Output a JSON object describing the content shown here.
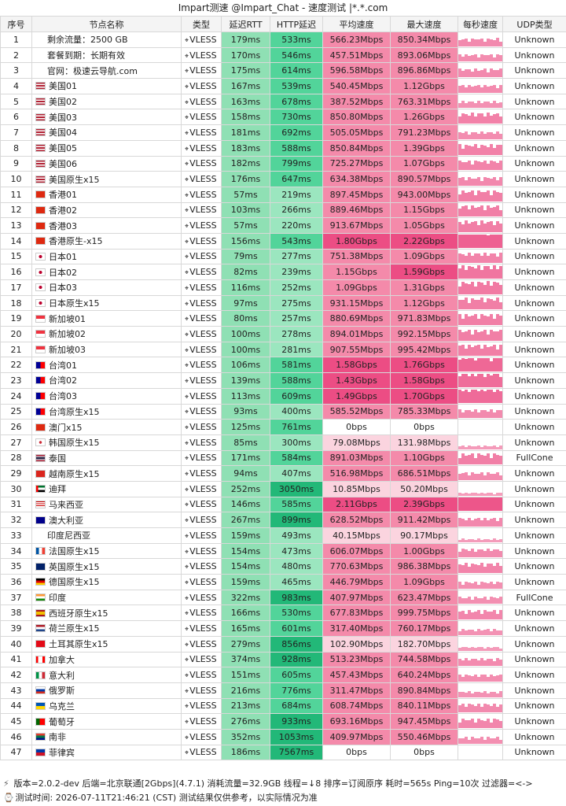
{
  "title": "Impart测速 @Impart_Chat - 速度测试 |*.*.com",
  "headers": [
    "序号",
    "节点名称",
    "类型",
    "延迟RTT",
    "HTTP延迟",
    "平均速度",
    "最大速度",
    "每秒速度",
    "UDP类型"
  ],
  "rows": [
    {
      "idx": "1",
      "flag": "",
      "name": "剩余流量：2500 GB",
      "type": "VLESS",
      "rtt": "179ms",
      "http": "533ms",
      "avg": "566.23Mbps",
      "max": "850.34Mbps",
      "udp": "Unknown"
    },
    {
      "idx": "2",
      "flag": "",
      "name": "套餐到期：长期有效",
      "type": "VLESS",
      "rtt": "170ms",
      "http": "546ms",
      "avg": "457.51Mbps",
      "max": "893.06Mbps",
      "udp": "Unknown"
    },
    {
      "idx": "3",
      "flag": "",
      "name": "官网：极速云导航.com",
      "type": "VLESS",
      "rtt": "175ms",
      "http": "614ms",
      "avg": "596.58Mbps",
      "max": "896.86Mbps",
      "udp": "Unknown"
    },
    {
      "idx": "4",
      "flag": "us",
      "name": "美国01",
      "type": "VLESS",
      "rtt": "167ms",
      "http": "539ms",
      "avg": "540.45Mbps",
      "max": "1.12Gbps",
      "udp": "Unknown"
    },
    {
      "idx": "5",
      "flag": "us",
      "name": "美国02",
      "type": "VLESS",
      "rtt": "163ms",
      "http": "678ms",
      "avg": "387.52Mbps",
      "max": "763.31Mbps",
      "udp": "Unknown"
    },
    {
      "idx": "6",
      "flag": "us",
      "name": "美国03",
      "type": "VLESS",
      "rtt": "158ms",
      "http": "730ms",
      "avg": "850.80Mbps",
      "max": "1.26Gbps",
      "udp": "Unknown"
    },
    {
      "idx": "7",
      "flag": "us",
      "name": "美国04",
      "type": "VLESS",
      "rtt": "181ms",
      "http": "692ms",
      "avg": "505.05Mbps",
      "max": "791.23Mbps",
      "udp": "Unknown"
    },
    {
      "idx": "8",
      "flag": "us",
      "name": "美国05",
      "type": "VLESS",
      "rtt": "183ms",
      "http": "588ms",
      "avg": "850.84Mbps",
      "max": "1.39Gbps",
      "udp": "Unknown"
    },
    {
      "idx": "9",
      "flag": "us",
      "name": "美国06",
      "type": "VLESS",
      "rtt": "182ms",
      "http": "799ms",
      "avg": "725.27Mbps",
      "max": "1.07Gbps",
      "udp": "Unknown"
    },
    {
      "idx": "10",
      "flag": "us",
      "name": "美国原生x15",
      "type": "VLESS",
      "rtt": "176ms",
      "http": "647ms",
      "avg": "634.38Mbps",
      "max": "890.57Mbps",
      "udp": "Unknown"
    },
    {
      "idx": "11",
      "flag": "hk",
      "name": "香港01",
      "type": "VLESS",
      "rtt": "57ms",
      "http": "219ms",
      "avg": "897.45Mbps",
      "max": "943.00Mbps",
      "udp": "Unknown"
    },
    {
      "idx": "12",
      "flag": "hk",
      "name": "香港02",
      "type": "VLESS",
      "rtt": "103ms",
      "http": "266ms",
      "avg": "889.46Mbps",
      "max": "1.15Gbps",
      "udp": "Unknown"
    },
    {
      "idx": "13",
      "flag": "hk",
      "name": "香港03",
      "type": "VLESS",
      "rtt": "57ms",
      "http": "220ms",
      "avg": "913.67Mbps",
      "max": "1.05Gbps",
      "udp": "Unknown"
    },
    {
      "idx": "14",
      "flag": "hk",
      "name": "香港原生-x15",
      "type": "VLESS",
      "rtt": "156ms",
      "http": "543ms",
      "avg": "1.80Gbps",
      "max": "2.22Gbps",
      "udp": "Unknown"
    },
    {
      "idx": "15",
      "flag": "jp",
      "name": "日本01",
      "type": "VLESS",
      "rtt": "79ms",
      "http": "277ms",
      "avg": "751.38Mbps",
      "max": "1.09Gbps",
      "udp": "Unknown"
    },
    {
      "idx": "16",
      "flag": "jp",
      "name": "日本02",
      "type": "VLESS",
      "rtt": "82ms",
      "http": "239ms",
      "avg": "1.15Gbps",
      "max": "1.59Gbps",
      "udp": "Unknown"
    },
    {
      "idx": "17",
      "flag": "jp",
      "name": "日本03",
      "type": "VLESS",
      "rtt": "116ms",
      "http": "252ms",
      "avg": "1.09Gbps",
      "max": "1.31Gbps",
      "udp": "Unknown"
    },
    {
      "idx": "18",
      "flag": "jp",
      "name": "日本原生x15",
      "type": "VLESS",
      "rtt": "97ms",
      "http": "275ms",
      "avg": "931.15Mbps",
      "max": "1.12Gbps",
      "udp": "Unknown"
    },
    {
      "idx": "19",
      "flag": "sg",
      "name": "新加坡01",
      "type": "VLESS",
      "rtt": "80ms",
      "http": "257ms",
      "avg": "880.69Mbps",
      "max": "971.83Mbps",
      "udp": "Unknown"
    },
    {
      "idx": "20",
      "flag": "sg",
      "name": "新加坡02",
      "type": "VLESS",
      "rtt": "100ms",
      "http": "278ms",
      "avg": "894.01Mbps",
      "max": "992.15Mbps",
      "udp": "Unknown"
    },
    {
      "idx": "21",
      "flag": "sg",
      "name": "新加坡03",
      "type": "VLESS",
      "rtt": "100ms",
      "http": "281ms",
      "avg": "907.55Mbps",
      "max": "995.42Mbps",
      "udp": "Unknown"
    },
    {
      "idx": "22",
      "flag": "tw",
      "name": "台湾01",
      "type": "VLESS",
      "rtt": "106ms",
      "http": "581ms",
      "avg": "1.58Gbps",
      "max": "1.76Gbps",
      "udp": "Unknown"
    },
    {
      "idx": "23",
      "flag": "tw",
      "name": "台湾02",
      "type": "VLESS",
      "rtt": "139ms",
      "http": "588ms",
      "avg": "1.43Gbps",
      "max": "1.58Gbps",
      "udp": "Unknown"
    },
    {
      "idx": "24",
      "flag": "tw",
      "name": "台湾03",
      "type": "VLESS",
      "rtt": "113ms",
      "http": "609ms",
      "avg": "1.49Gbps",
      "max": "1.70Gbps",
      "udp": "Unknown"
    },
    {
      "idx": "25",
      "flag": "tw",
      "name": "台湾原生x15",
      "type": "VLESS",
      "rtt": "93ms",
      "http": "400ms",
      "avg": "585.52Mbps",
      "max": "785.33Mbps",
      "udp": "Unknown"
    },
    {
      "idx": "26",
      "flag": "cn",
      "name": "澳门x15",
      "type": "VLESS",
      "rtt": "125ms",
      "http": "761ms",
      "avg": "0bps",
      "max": "0bps",
      "udp": "Unknown"
    },
    {
      "idx": "27",
      "flag": "kr",
      "name": "韩国原生x15",
      "type": "VLESS",
      "rtt": "85ms",
      "http": "300ms",
      "avg": "79.08Mbps",
      "max": "131.98Mbps",
      "udp": "Unknown"
    },
    {
      "idx": "28",
      "flag": "th",
      "name": "泰国",
      "type": "VLESS",
      "rtt": "171ms",
      "http": "584ms",
      "avg": "891.03Mbps",
      "max": "1.10Gbps",
      "udp": "FullCone"
    },
    {
      "idx": "29",
      "flag": "vn",
      "name": "越南原生x15",
      "type": "VLESS",
      "rtt": "94ms",
      "http": "407ms",
      "avg": "516.98Mbps",
      "max": "686.51Mbps",
      "udp": "Unknown"
    },
    {
      "idx": "30",
      "flag": "ae",
      "name": "迪拜",
      "type": "VLESS",
      "rtt": "252ms",
      "http": "3050ms",
      "avg": "10.85Mbps",
      "max": "50.20Mbps",
      "udp": "Unknown"
    },
    {
      "idx": "31",
      "flag": "my",
      "name": "马来西亚",
      "type": "VLESS",
      "rtt": "146ms",
      "http": "585ms",
      "avg": "2.11Gbps",
      "max": "2.39Gbps",
      "udp": "Unknown"
    },
    {
      "idx": "32",
      "flag": "au",
      "name": "澳大利亚",
      "type": "VLESS",
      "rtt": "267ms",
      "http": "899ms",
      "avg": "628.52Mbps",
      "max": "911.42Mbps",
      "udp": "Unknown"
    },
    {
      "idx": "33",
      "flag": "",
      "name": "印度尼西亚",
      "type": "VLESS",
      "rtt": "159ms",
      "http": "493ms",
      "avg": "40.15Mbps",
      "max": "90.17Mbps",
      "udp": "Unknown"
    },
    {
      "idx": "34",
      "flag": "fr",
      "name": "法国原生x15",
      "type": "VLESS",
      "rtt": "154ms",
      "http": "473ms",
      "avg": "606.07Mbps",
      "max": "1.00Gbps",
      "udp": "Unknown"
    },
    {
      "idx": "35",
      "flag": "gb",
      "name": "英国原生x15",
      "type": "VLESS",
      "rtt": "154ms",
      "http": "480ms",
      "avg": "770.63Mbps",
      "max": "986.38Mbps",
      "udp": "Unknown"
    },
    {
      "idx": "36",
      "flag": "de",
      "name": "德国原生x15",
      "type": "VLESS",
      "rtt": "159ms",
      "http": "465ms",
      "avg": "446.79Mbps",
      "max": "1.09Gbps",
      "udp": "Unknown"
    },
    {
      "idx": "37",
      "flag": "in",
      "name": "印度",
      "type": "VLESS",
      "rtt": "322ms",
      "http": "983ms",
      "avg": "407.97Mbps",
      "max": "623.47Mbps",
      "udp": "FullCone"
    },
    {
      "idx": "38",
      "flag": "es",
      "name": "西班牙原生x15",
      "type": "VLESS",
      "rtt": "166ms",
      "http": "530ms",
      "avg": "677.83Mbps",
      "max": "999.75Mbps",
      "udp": "Unknown"
    },
    {
      "idx": "39",
      "flag": "nl",
      "name": "荷兰原生x15",
      "type": "VLESS",
      "rtt": "165ms",
      "http": "601ms",
      "avg": "317.40Mbps",
      "max": "760.17Mbps",
      "udp": "Unknown"
    },
    {
      "idx": "40",
      "flag": "tr",
      "name": "土耳其原生x15",
      "type": "VLESS",
      "rtt": "279ms",
      "http": "856ms",
      "avg": "102.90Mbps",
      "max": "182.70Mbps",
      "udp": "Unknown"
    },
    {
      "idx": "41",
      "flag": "ca",
      "name": "加拿大",
      "type": "VLESS",
      "rtt": "374ms",
      "http": "928ms",
      "avg": "513.23Mbps",
      "max": "744.58Mbps",
      "udp": "Unknown"
    },
    {
      "idx": "42",
      "flag": "it",
      "name": "意大利",
      "type": "VLESS",
      "rtt": "151ms",
      "http": "605ms",
      "avg": "457.43Mbps",
      "max": "640.24Mbps",
      "udp": "Unknown"
    },
    {
      "idx": "43",
      "flag": "ru",
      "name": "俄罗斯",
      "type": "VLESS",
      "rtt": "216ms",
      "http": "776ms",
      "avg": "311.47Mbps",
      "max": "890.84Mbps",
      "udp": "Unknown"
    },
    {
      "idx": "44",
      "flag": "ua",
      "name": "乌克兰",
      "type": "VLESS",
      "rtt": "213ms",
      "http": "684ms",
      "avg": "608.74Mbps",
      "max": "840.11Mbps",
      "udp": "Unknown"
    },
    {
      "idx": "45",
      "flag": "pt",
      "name": "葡萄牙",
      "type": "VLESS",
      "rtt": "276ms",
      "http": "933ms",
      "avg": "693.16Mbps",
      "max": "947.45Mbps",
      "udp": "Unknown"
    },
    {
      "idx": "46",
      "flag": "za",
      "name": "南非",
      "type": "VLESS",
      "rtt": "352ms",
      "http": "1053ms",
      "avg": "409.97Mbps",
      "max": "550.46Mbps",
      "udp": "Unknown"
    },
    {
      "idx": "47",
      "flag": "ph",
      "name": "菲律宾",
      "type": "VLESS",
      "rtt": "186ms",
      "http": "7567ms",
      "avg": "0bps",
      "max": "0bps",
      "udp": "Unknown"
    }
  ],
  "footer_line1": "版本=2.0.2-dev 后端=北京联通[2Gbps](4.7.1) 消耗流量=32.9GB 线程=↓8 排序=订阅原序 耗时=565s Ping=10次 过滤器=<->",
  "footer_line2": "测试时间: 2026-07-11T21:46:21 (CST) 测试结果仅供参考，以实际情况为准",
  "colors": {
    "rtt_bg": "#8fe0b4",
    "http_light": "#9be6bf",
    "http_mid": "#52d49a",
    "http_dark": "#22b878",
    "speed_low": "#fbd4df",
    "speed_mid": "#f48aaa",
    "speed_high": "#ec4d84",
    "bar": "#ec4d84"
  }
}
